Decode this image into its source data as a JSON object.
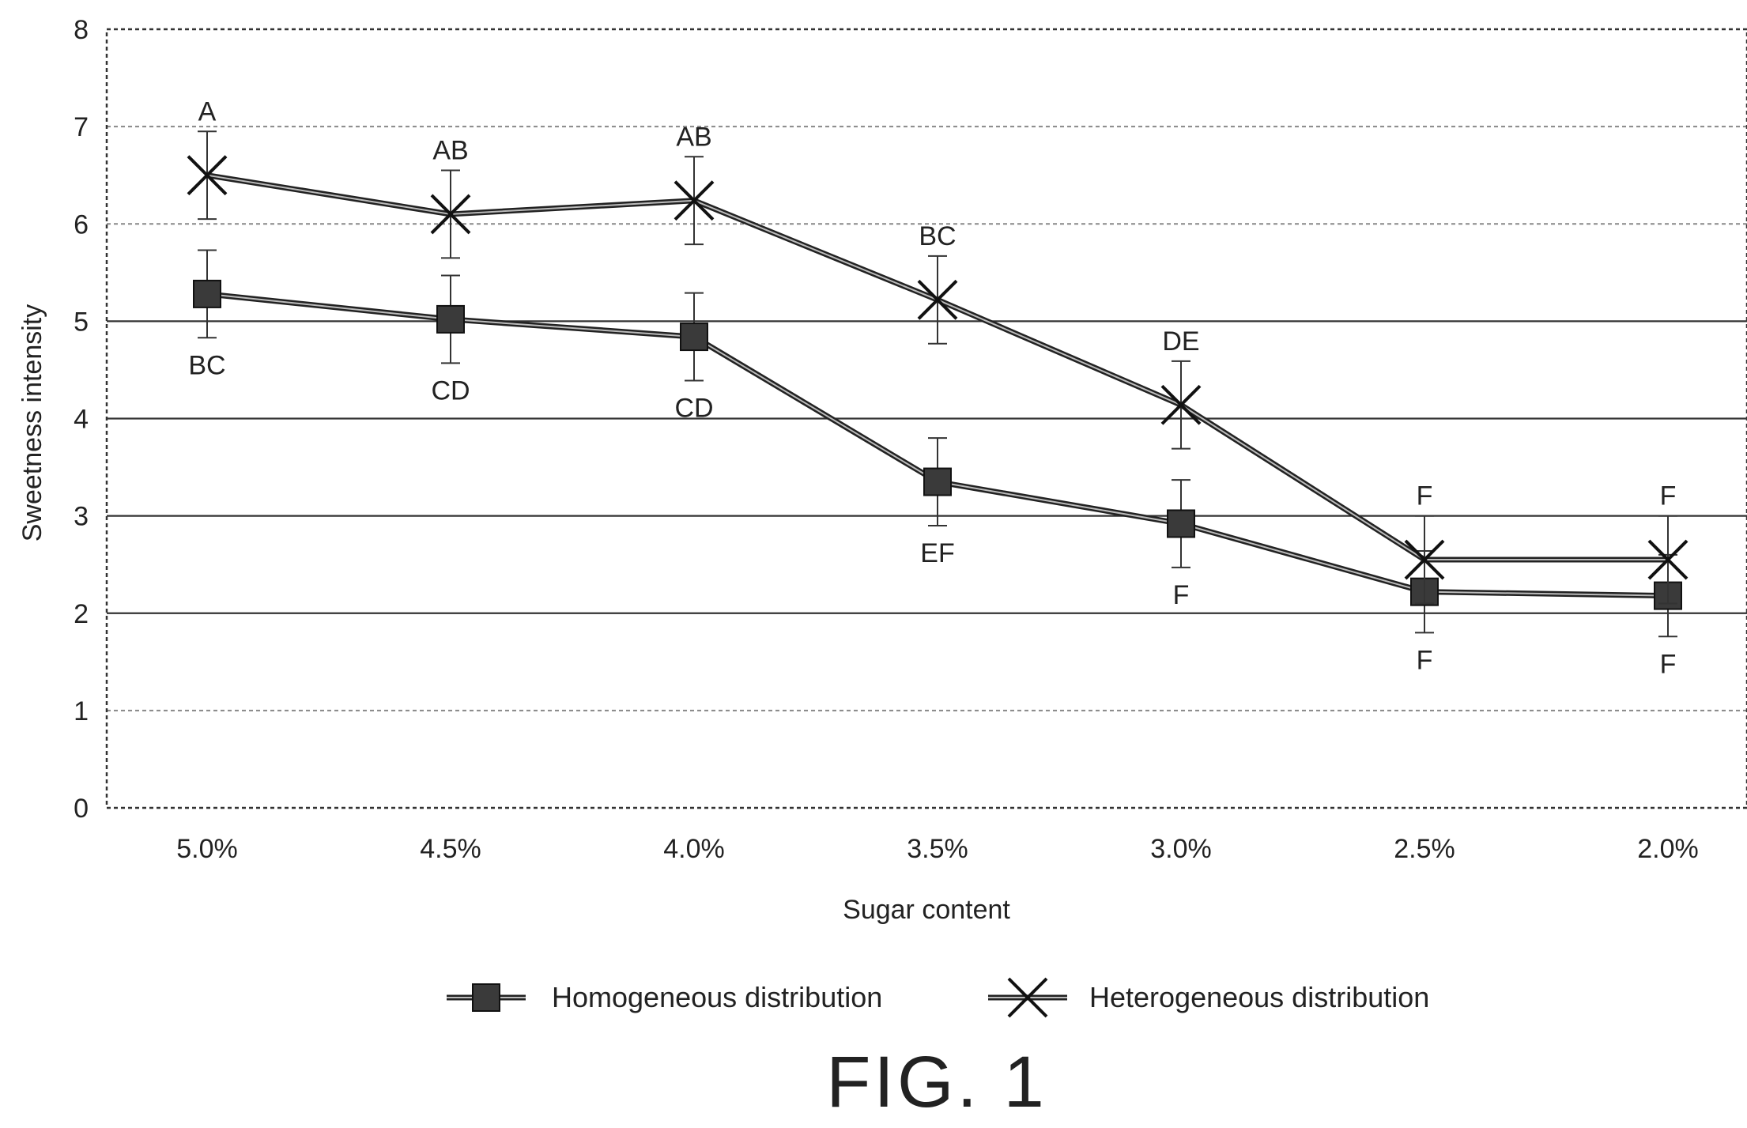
{
  "figure_label": "FIG. 1",
  "chart_data": {
    "type": "line",
    "xlabel": "Sugar content",
    "ylabel": "Sweetness intensity",
    "categories": [
      "5.0%",
      "4.5%",
      "4.0%",
      "3.5%",
      "3.0%",
      "2.5%",
      "2.0%"
    ],
    "ylim": [
      0,
      8
    ],
    "yticks": [
      0,
      1,
      2,
      3,
      4,
      5,
      6,
      7,
      8
    ],
    "grid": true,
    "legend_position": "bottom",
    "series": [
      {
        "name": "Homogeneous distribution",
        "marker": "square",
        "color": "#222222",
        "values": [
          5.28,
          5.02,
          4.84,
          3.35,
          2.92,
          2.22,
          2.18
        ],
        "error": [
          0.45,
          0.45,
          0.45,
          0.45,
          0.45,
          0.42,
          0.42
        ],
        "significance": [
          "BC",
          "CD",
          "CD",
          "EF",
          "F",
          "F",
          "F"
        ],
        "label_side": "below"
      },
      {
        "name": "Heterogeneous distribution",
        "marker": "x",
        "color": "#222222",
        "values": [
          6.5,
          6.1,
          6.24,
          5.22,
          4.14,
          2.55,
          2.55
        ],
        "error": [
          0.45,
          0.45,
          0.45,
          0.45,
          0.45,
          0.45,
          0.45
        ],
        "significance": [
          "A",
          "AB",
          "AB",
          "BC",
          "DE",
          "F",
          "F"
        ],
        "label_side": "above"
      }
    ]
  }
}
